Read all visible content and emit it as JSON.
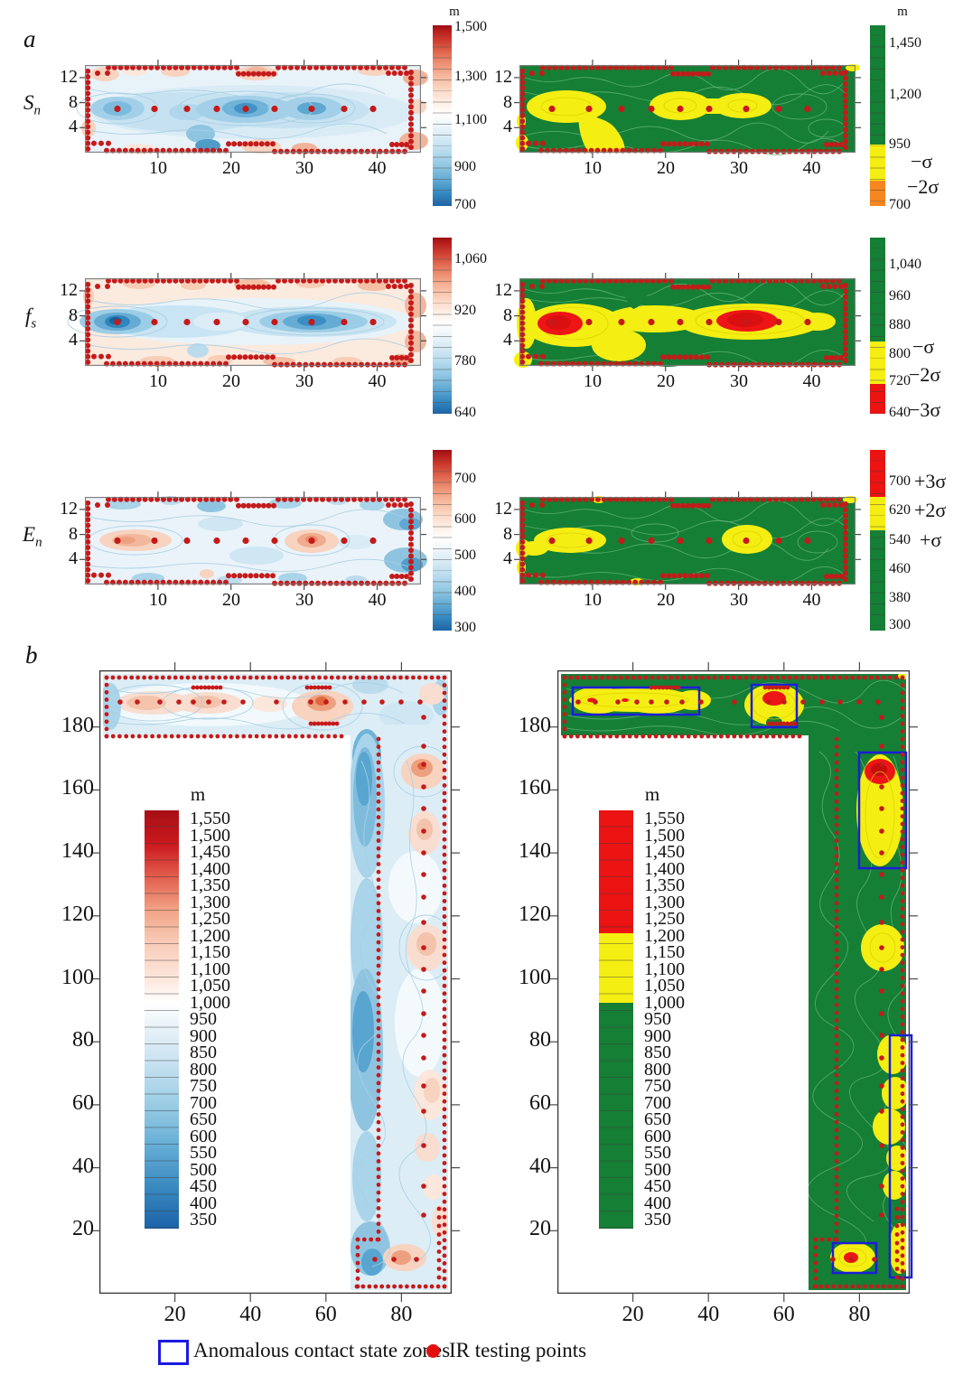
{
  "figure": {
    "panel_a_label": "a",
    "panel_b_label": "b",
    "legend": {
      "zones": "Anomalous contact state zones",
      "points": "IR testing points"
    }
  },
  "part_a": {
    "x_ticks": [
      "10",
      "20",
      "30",
      "40"
    ],
    "y_ticks": [
      "12",
      "8",
      "4"
    ],
    "rows": [
      {
        "label_base": "S",
        "label_sub": "n",
        "left_colorbar": {
          "title": "m",
          "labels": [
            "1,500",
            "1,300",
            "1,100",
            "900",
            "700"
          ]
        },
        "right_colorbar": {
          "title": "m",
          "labels": [
            "1,450",
            "1,200",
            "950",
            "700"
          ],
          "sigma_labels": [
            "−σ",
            "−2σ"
          ]
        }
      },
      {
        "label_base": "f",
        "label_sub": "s",
        "left_colorbar": {
          "labels": [
            "1,060",
            "920",
            "780",
            "640"
          ]
        },
        "right_colorbar": {
          "labels": [
            "1,040",
            "960",
            "880",
            "800",
            "720",
            "640"
          ],
          "sigma_labels": [
            "−σ",
            "−2σ",
            "−3σ"
          ]
        }
      },
      {
        "label_base": "E",
        "label_sub": "n",
        "left_colorbar": {
          "labels": [
            "700",
            "600",
            "500",
            "400",
            "300"
          ]
        },
        "right_colorbar": {
          "labels": [
            "700",
            "620",
            "540",
            "460",
            "380",
            "300"
          ],
          "sigma_labels": [
            "+3σ",
            "+2σ",
            "+σ"
          ]
        }
      }
    ]
  },
  "part_b": {
    "x_ticks": [
      "20",
      "40",
      "60",
      "80"
    ],
    "y_ticks": [
      "180",
      "160",
      "140",
      "120",
      "100",
      "80",
      "60",
      "40",
      "20"
    ],
    "legend_title": "m",
    "legend_values": [
      "1,550",
      "1,500",
      "1,450",
      "1,400",
      "1,350",
      "1,300",
      "1,250",
      "1,200",
      "1,150",
      "1,100",
      "1,050",
      "1,000",
      "950",
      "900",
      "850",
      "800",
      "750",
      "700",
      "650",
      "600",
      "550",
      "500",
      "450",
      "400",
      "350"
    ]
  },
  "chart_data": [
    {
      "panel": "a_row1_left",
      "type": "heatmap",
      "quantity": "Sn",
      "x_ticks": [
        10,
        20,
        30,
        40
      ],
      "y_ticks": [
        4,
        8,
        12
      ],
      "colorbar_title": "m",
      "colorbar_ticks": [
        1500,
        1300,
        1100,
        900,
        700
      ],
      "colorbar_range": [
        700,
        1550
      ],
      "palette": "red-high / white-mid / blue-low diverging",
      "features": "blue minima along central row of IR points (y≈7) near x≈5, 14, 22, 26, 31; reddish highs along borders"
    },
    {
      "panel": "a_row1_right",
      "type": "heatmap",
      "quantity": "Sn",
      "x_ticks": [
        10,
        20,
        30,
        40
      ],
      "y_ticks": [
        4,
        8,
        12
      ],
      "colorbar_title": "m",
      "colorbar_ticks": [
        1450,
        1200,
        950,
        700
      ],
      "classes": [
        {
          "color": "green",
          "range": [
            950,
            1500
          ]
        },
        {
          "color": "yellow",
          "label": "−σ",
          "range": [
            760,
            950
          ]
        },
        {
          "color": "orange",
          "label": "−2σ",
          "range": [
            700,
            760
          ]
        }
      ],
      "features": "yellow anomaly zones at x≈3–17 (extending to bottom) and dumbbell x≈19–33 at y≈7"
    },
    {
      "panel": "a_row2_left",
      "type": "heatmap",
      "quantity": "fs",
      "x_ticks": [
        10,
        20,
        30,
        40
      ],
      "y_ticks": [
        4,
        8,
        12
      ],
      "colorbar_ticks": [
        1060,
        920,
        780,
        640
      ],
      "colorbar_range": [
        640,
        1080
      ],
      "palette": "red-high / white-mid / blue-low diverging",
      "features": "deep blue minima at x≈4.5 and broad minimum around x≈31 along y≈7; pink highs at edges"
    },
    {
      "panel": "a_row2_right",
      "type": "heatmap",
      "quantity": "fs",
      "colorbar_ticks": [
        1040,
        960,
        880,
        800,
        720,
        640
      ],
      "classes": [
        {
          "color": "green",
          "range": [
            840,
            1060
          ]
        },
        {
          "color": "yellow",
          "labels": [
            "−σ",
            "−2σ"
          ],
          "range": [
            740,
            840
          ]
        },
        {
          "color": "red",
          "label": "−3σ",
          "range": [
            640,
            740
          ]
        }
      ],
      "features": "continuous yellow band across mid-height with red cores at x≈5 and x≈28–35"
    },
    {
      "panel": "a_row3_left",
      "type": "heatmap",
      "quantity": "En",
      "colorbar_ticks": [
        700,
        600,
        500,
        400,
        300
      ],
      "colorbar_range": [
        300,
        760
      ],
      "palette": "red-high / white-mid / blue-low diverging",
      "features": "pink maxima at x≈5–9 and x≈31 on y≈7; pale blue elsewhere"
    },
    {
      "panel": "a_row3_right",
      "type": "heatmap",
      "quantity": "En",
      "colorbar_ticks": [
        700,
        620,
        540,
        460,
        380,
        300
      ],
      "classes": [
        {
          "color": "red",
          "label": "+3σ",
          "range": [
            660,
            760
          ]
        },
        {
          "color": "yellow",
          "label": "+2σ",
          "range": [
            570,
            660
          ]
        },
        {
          "color": "green",
          "label": "+σ",
          "range": [
            300,
            570
          ]
        }
      ],
      "features": "yellow anomaly zones at x≈3–11 and x≈28–34 on y≈7"
    },
    {
      "panel": "b_left",
      "type": "heatmap",
      "region": "L-shaped survey area (top band y≈178–196 plus right band x≈67–95)",
      "x_ticks": [
        20,
        40,
        60,
        80
      ],
      "y_ticks": [
        20,
        40,
        60,
        80,
        100,
        120,
        140,
        160,
        180
      ],
      "colorbar_title": "m",
      "colorbar_ticks": [
        1550,
        1500,
        1450,
        1400,
        1350,
        1300,
        1250,
        1200,
        1150,
        1100,
        1050,
        1000,
        950,
        900,
        850,
        800,
        750,
        700,
        650,
        600,
        550,
        500,
        450,
        400,
        350
      ],
      "palette": "red-high / white-mid / blue-low diverging",
      "features": "pink highs in top band (x≈10, 25, 60 at y≈188) and along right column (y≈168, 147, 110, 47, 10); blue lows along x≈70 column"
    },
    {
      "panel": "b_right",
      "type": "heatmap",
      "region": "L-shaped survey area",
      "x_ticks": [
        20,
        40,
        60,
        80
      ],
      "y_ticks": [
        20,
        40,
        60,
        80,
        100,
        120,
        140,
        160,
        180
      ],
      "colorbar_title": "m",
      "classes": [
        {
          "color": "red",
          "range": [
            1200,
            1550
          ]
        },
        {
          "color": "yellow",
          "range": [
            1000,
            1200
          ]
        },
        {
          "color": "green",
          "range": [
            350,
            1000
          ]
        }
      ],
      "anomalous_zone_rect_count": 5,
      "annotations": [
        "Anomalous contact state zones (blue rectangles)",
        "IR testing points (red dots)"
      ]
    }
  ]
}
